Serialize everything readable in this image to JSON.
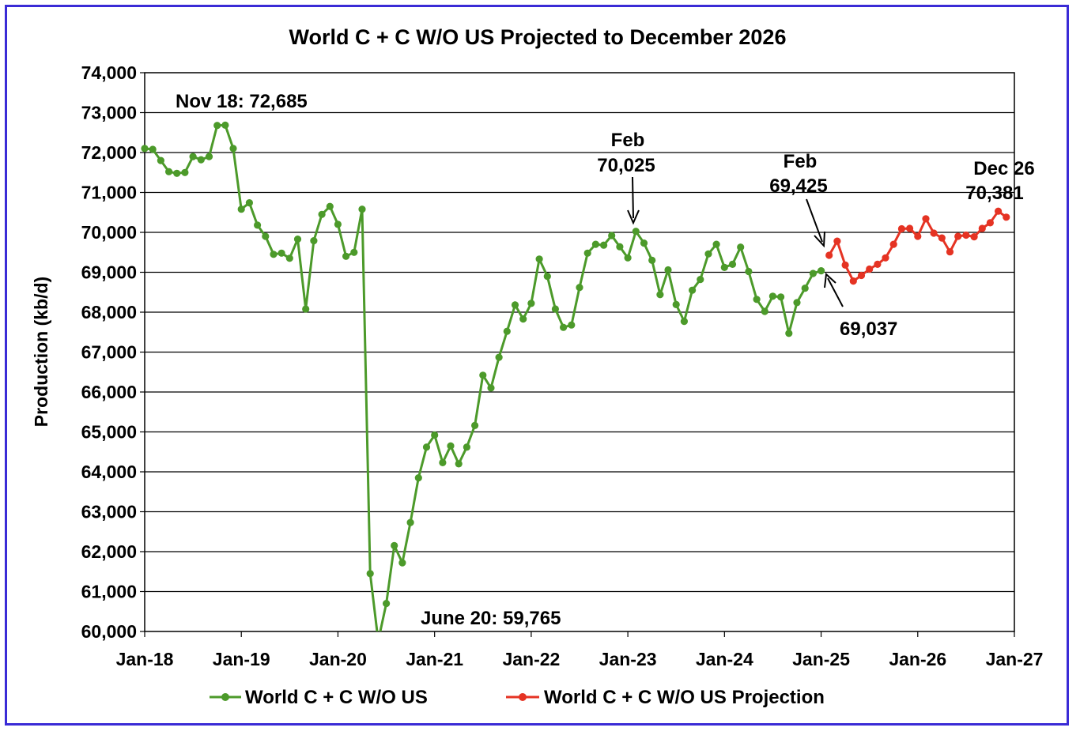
{
  "chart_data": {
    "type": "line",
    "title": "World C + C W/O US Projected to December 2026",
    "xlabel": "",
    "ylabel": "Production (kb/d)",
    "ylim": [
      60000,
      74000
    ],
    "grid": true,
    "legend_position": "bottom",
    "x_ticks": [
      "Jan-18",
      "Jan-19",
      "Jan-20",
      "Jan-21",
      "Jan-22",
      "Jan-23",
      "Jan-24",
      "Jan-25",
      "Jan-26",
      "Jan-27"
    ],
    "y_ticks": [
      "60,000",
      "61,000",
      "62,000",
      "63,000",
      "64,000",
      "65,000",
      "66,000",
      "67,000",
      "68,000",
      "69,000",
      "70,000",
      "71,000",
      "72,000",
      "73,000",
      "74,000"
    ],
    "series": [
      {
        "name": "World C + C W/O US",
        "color": "#4c9a2a",
        "start": "Jan-18",
        "values": [
          72100,
          72080,
          71800,
          71520,
          71480,
          71500,
          71900,
          71820,
          71900,
          72680,
          72685,
          72100,
          70580,
          70740,
          70180,
          69900,
          69450,
          69480,
          69350,
          69830,
          68080,
          69790,
          70450,
          70650,
          70200,
          69400,
          69500,
          70580,
          61450,
          59765,
          60700,
          62150,
          61720,
          62730,
          63850,
          64620,
          64920,
          64230,
          64650,
          64200,
          64620,
          65160,
          66420,
          66100,
          66870,
          67520,
          68180,
          67830,
          68220,
          69330,
          68900,
          68080,
          67620,
          67680,
          68620,
          69480,
          69700,
          69680,
          69920,
          69640,
          69360,
          70025,
          69730,
          69300,
          68440,
          69060,
          68190,
          67770,
          68550,
          68820,
          69460,
          69700,
          69120,
          69200,
          69630,
          69020,
          68320,
          68020,
          68400,
          68380,
          67470,
          68240,
          68600,
          68970,
          69037
        ]
      },
      {
        "name": "World C + C W/O US Projection",
        "color": "#e53323",
        "start": "Feb-25",
        "values": [
          69425,
          69780,
          69180,
          68780,
          68920,
          69080,
          69200,
          69360,
          69700,
          70090,
          70100,
          69900,
          70340,
          69980,
          69860,
          69510,
          69900,
          69930,
          69890,
          70100,
          70240,
          70530,
          70381
        ]
      }
    ],
    "annotations": [
      {
        "line1": "Nov 18: 72,685"
      },
      {
        "line1": "Feb",
        "line2": "70,025"
      },
      {
        "line1": "Feb",
        "line2": "69,425"
      },
      {
        "line1": "69,037"
      },
      {
        "line1": "Dec 26",
        "line2": "70,381"
      },
      {
        "line1": "June 20: 59,765"
      }
    ]
  }
}
